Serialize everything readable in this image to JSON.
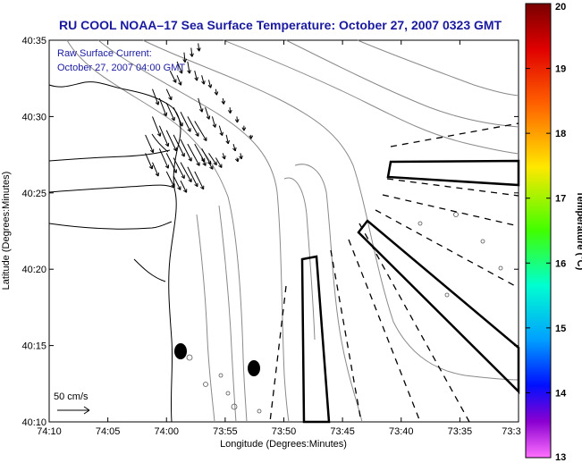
{
  "chart_data": {
    "type": "map",
    "title": "RU COOL  NOAA–17  Sea Surface Temperature:  October 27, 2007 0323 GMT",
    "annotation_line1": "Raw Surface Current:",
    "annotation_line2": "October 27, 2007 04:00 GMT",
    "xlabel": "Longitude (Degrees:Minutes)",
    "ylabel": "Latitude (Degrees:Minutes)",
    "x_ticks": [
      "74:10",
      "74:05",
      "74:00",
      "73:55",
      "73:50",
      "73:45",
      "73:40",
      "73:35",
      "73:3"
    ],
    "y_ticks": [
      "40:35",
      "40:30",
      "40:25",
      "40:20",
      "40:15",
      "40:10"
    ],
    "colorbar": {
      "label": "Temperature (°C)",
      "ticks": [
        "20",
        "19",
        "18",
        "17",
        "16",
        "15",
        "14",
        "13"
      ],
      "range": [
        13,
        20
      ],
      "colors": [
        "#8b0000",
        "#ff0000",
        "#ff8000",
        "#ffff00",
        "#00ff00",
        "#00ffff",
        "#0000ff",
        "#8000c0",
        "#ff60ff"
      ]
    },
    "scale_label": "50 cm/s",
    "arrows": [
      [
        74.02,
        40.53,
        0.3,
        -0.8
      ],
      [
        74.01,
        40.52,
        0.35,
        -0.9
      ],
      [
        74.0,
        40.515,
        0.4,
        -0.9
      ],
      [
        73.99,
        40.51,
        0.45,
        -0.95
      ],
      [
        73.98,
        40.505,
        0.5,
        -1.0
      ],
      [
        73.97,
        40.5,
        0.55,
        -1.0
      ],
      [
        73.96,
        40.495,
        0.6,
        -1.0
      ],
      [
        74.02,
        40.5,
        0.4,
        -1.0
      ],
      [
        74.01,
        40.49,
        0.45,
        -1.05
      ],
      [
        74.0,
        40.485,
        0.5,
        -1.05
      ],
      [
        73.99,
        40.48,
        0.55,
        -1.1
      ],
      [
        73.98,
        40.475,
        0.55,
        -1.1
      ],
      [
        73.97,
        40.47,
        0.6,
        -1.1
      ],
      [
        74.01,
        40.465,
        0.45,
        -1.0
      ],
      [
        74.0,
        40.46,
        0.5,
        -1.0
      ],
      [
        73.99,
        40.455,
        0.55,
        -1.05
      ],
      [
        73.98,
        40.45,
        0.55,
        -1.0
      ],
      [
        73.97,
        40.445,
        0.5,
        -1.0
      ],
      [
        73.96,
        40.44,
        0.45,
        -0.9
      ],
      [
        74.0,
        40.44,
        0.4,
        -0.8
      ],
      [
        73.99,
        40.435,
        0.35,
        -0.7
      ],
      [
        73.98,
        40.43,
        0.3,
        -0.6
      ],
      [
        73.96,
        40.47,
        0.5,
        -0.9
      ],
      [
        73.95,
        40.465,
        0.45,
        -0.8
      ],
      [
        73.94,
        40.46,
        0.4,
        -0.6
      ],
      [
        73.93,
        40.455,
        0.3,
        -0.5
      ],
      [
        73.955,
        40.52,
        0.2,
        -0.7
      ],
      [
        73.945,
        40.51,
        0.2,
        -0.6
      ],
      [
        73.935,
        40.5,
        0.15,
        -0.55
      ],
      [
        73.925,
        40.49,
        0.15,
        -0.5
      ],
      [
        73.915,
        40.48,
        0.1,
        -0.45
      ],
      [
        73.905,
        40.47,
        0.1,
        -0.35
      ],
      [
        73.895,
        40.46,
        0.05,
        -0.3
      ],
      [
        73.97,
        40.56,
        0.1,
        -0.6
      ],
      [
        73.96,
        40.55,
        0.12,
        -0.5
      ],
      [
        73.95,
        40.545,
        0.12,
        -0.45
      ],
      [
        73.94,
        40.54,
        0.1,
        -0.4
      ],
      [
        73.985,
        40.545,
        0.2,
        -0.5
      ],
      [
        73.975,
        40.57,
        0.05,
        -0.5
      ],
      [
        73.965,
        40.575,
        0.05,
        -0.45
      ],
      [
        73.955,
        40.58,
        0.05,
        -0.4
      ],
      [
        74.0,
        40.53,
        0.25,
        -0.55
      ],
      [
        73.93,
        40.53,
        0.05,
        -0.3
      ],
      [
        73.92,
        40.52,
        0.05,
        -0.3
      ],
      [
        73.91,
        40.51,
        0.02,
        -0.3
      ],
      [
        73.9,
        40.5,
        0.02,
        -0.3
      ],
      [
        73.89,
        40.49,
        0.0,
        -0.25
      ],
      [
        73.88,
        40.48,
        0.0,
        -0.2
      ],
      [
        74.03,
        40.48,
        0.4,
        -0.9
      ],
      [
        74.03,
        40.46,
        0.35,
        -0.8
      ],
      [
        74.02,
        40.45,
        0.3,
        -0.7
      ],
      [
        73.95,
        40.455,
        0.2,
        -0.4
      ],
      [
        73.94,
        40.45,
        0.2,
        -0.35
      ],
      [
        73.92,
        40.46,
        0.1,
        -0.3
      ],
      [
        73.9,
        40.455,
        0.05,
        -0.2
      ],
      [
        73.985,
        40.56,
        0.25,
        -0.6
      ],
      [
        73.995,
        40.55,
        0.3,
        -0.6
      ]
    ]
  }
}
